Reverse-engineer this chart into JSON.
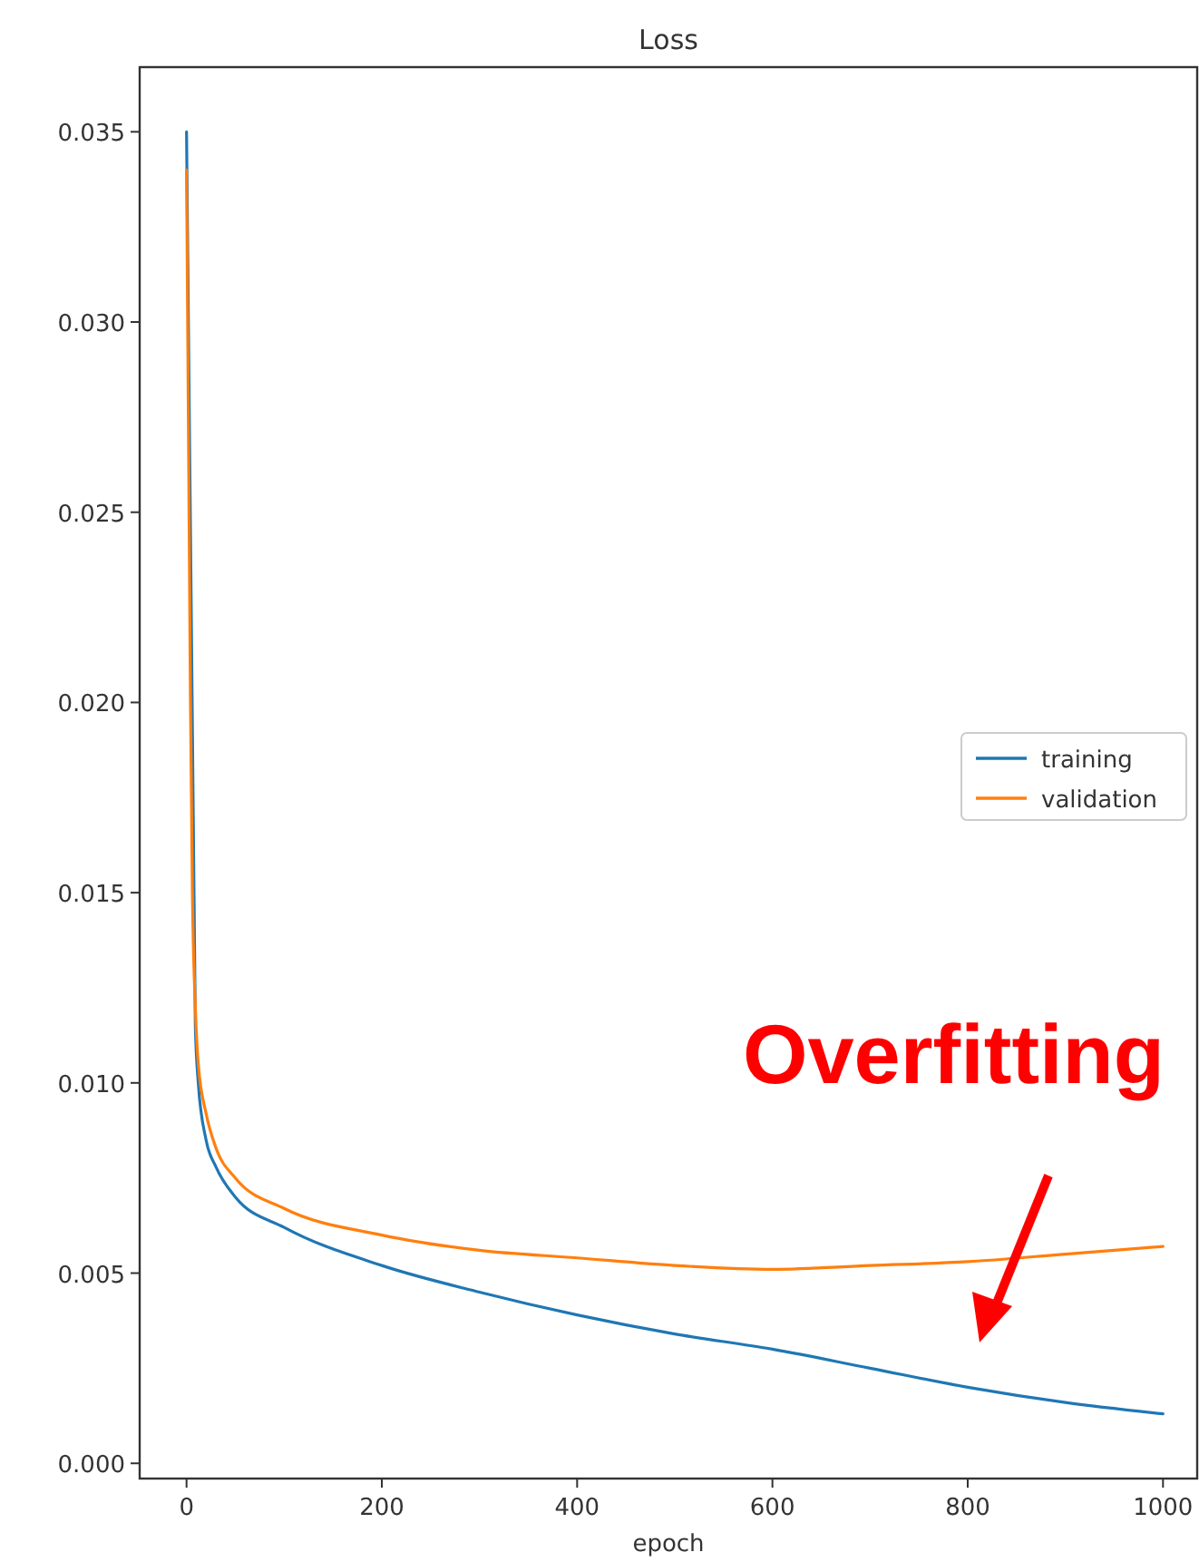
{
  "chart_data": {
    "type": "line",
    "title": "Loss",
    "xlabel": "epoch",
    "xlim": [
      -48,
      1035
    ],
    "xticks": [
      0,
      200,
      400,
      600,
      800,
      1000
    ],
    "ylim": [
      -0.0004,
      0.0367
    ],
    "yticks": [
      {
        "value": 0,
        "label": "0.000"
      },
      {
        "value": 0.005,
        "label": "0.005"
      },
      {
        "value": 0.01,
        "label": "0.010"
      },
      {
        "value": 0.015,
        "label": "0.015"
      },
      {
        "value": 0.02,
        "label": "0.020"
      },
      {
        "value": 0.025,
        "label": "0.025"
      },
      {
        "value": 0.03,
        "label": "0.030"
      },
      {
        "value": 0.035,
        "label": "0.035"
      }
    ],
    "legend": "right",
    "grid": false,
    "marker": "none",
    "line_style": "solid",
    "annotations": [
      "Overfitting"
    ],
    "series": [
      {
        "name": "training",
        "color": "#1f77b4",
        "x": [
          0,
          9,
          12,
          20,
          30,
          50,
          100,
          200,
          300,
          400,
          500,
          600,
          700,
          800,
          900,
          1000
        ],
        "values": [
          0.035,
          0.0115,
          0.01,
          0.0085,
          0.0078,
          0.007,
          0.0062,
          0.0052,
          0.0045,
          0.0039,
          0.0034,
          0.003,
          0.0025,
          0.002,
          0.0016,
          0.0013
        ]
      },
      {
        "name": "validation",
        "color": "#ff7f0e",
        "x": [
          0,
          2,
          4,
          6,
          9,
          12,
          20,
          30,
          50,
          100,
          200,
          300,
          400,
          500,
          600,
          700,
          800,
          900,
          1000
        ],
        "values": [
          0.034,
          0.027,
          0.02,
          0.015,
          0.012,
          0.0105,
          0.0092,
          0.0083,
          0.0075,
          0.0067,
          0.006,
          0.0056,
          0.0054,
          0.0052,
          0.0051,
          0.0052,
          0.0053,
          0.0055,
          0.0057
        ]
      }
    ]
  }
}
